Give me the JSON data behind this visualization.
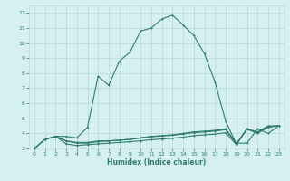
{
  "xlabel": "Humidex (Indice chaleur)",
  "bg_color": "#d6f0ef",
  "grid_color": "#b8dbd9",
  "line_color": "#2e7d6e",
  "xlim": [
    -0.5,
    23.5
  ],
  "ylim": [
    3,
    12.5
  ],
  "xticks": [
    0,
    1,
    2,
    3,
    4,
    5,
    6,
    7,
    8,
    9,
    10,
    11,
    12,
    13,
    14,
    15,
    16,
    17,
    18,
    19,
    20,
    21,
    22,
    23
  ],
  "yticks": [
    3,
    4,
    5,
    6,
    7,
    8,
    9,
    10,
    11,
    12
  ],
  "main_x": [
    0,
    1,
    2,
    3,
    4,
    5,
    6,
    7,
    8,
    9,
    10,
    11,
    12,
    13,
    14,
    15,
    16,
    17,
    18,
    19,
    20,
    21,
    22,
    23
  ],
  "main_y": [
    3.0,
    3.6,
    3.8,
    3.8,
    3.7,
    4.4,
    7.8,
    7.2,
    8.8,
    9.4,
    10.8,
    11.0,
    11.6,
    11.85,
    11.2,
    10.5,
    9.3,
    7.4,
    4.8,
    3.3,
    4.3,
    4.1,
    4.5,
    4.5
  ],
  "line2_x": [
    0,
    1,
    2,
    3,
    4,
    5,
    6,
    7,
    8,
    9,
    10,
    11,
    12,
    13,
    14,
    15,
    16,
    17,
    18,
    19,
    20,
    21,
    22,
    23
  ],
  "line2_y": [
    3.0,
    3.6,
    3.8,
    3.5,
    3.4,
    3.4,
    3.5,
    3.5,
    3.55,
    3.6,
    3.7,
    3.8,
    3.85,
    3.9,
    4.0,
    4.1,
    4.15,
    4.2,
    4.3,
    3.35,
    3.35,
    4.3,
    4.0,
    4.5
  ],
  "line3_x": [
    0,
    1,
    2,
    3,
    4,
    5,
    6,
    7,
    8,
    9,
    10,
    11,
    12,
    13,
    14,
    15,
    16,
    17,
    18,
    19,
    20,
    21,
    22,
    23
  ],
  "line3_y": [
    3.0,
    3.6,
    3.8,
    3.5,
    3.35,
    3.35,
    3.45,
    3.5,
    3.55,
    3.6,
    3.7,
    3.78,
    3.82,
    3.88,
    3.95,
    4.05,
    4.1,
    4.15,
    4.25,
    3.3,
    4.3,
    4.05,
    4.45,
    4.5
  ],
  "line4_x": [
    2,
    3,
    4,
    5,
    6,
    7,
    8,
    9,
    10,
    11,
    12,
    13,
    14,
    15,
    16,
    17,
    18,
    19,
    20,
    21,
    22,
    23
  ],
  "line4_y": [
    3.8,
    3.3,
    3.2,
    3.25,
    3.3,
    3.35,
    3.4,
    3.45,
    3.5,
    3.58,
    3.62,
    3.68,
    3.75,
    3.85,
    3.9,
    3.95,
    4.05,
    3.25,
    4.28,
    4.0,
    4.4,
    4.5
  ]
}
